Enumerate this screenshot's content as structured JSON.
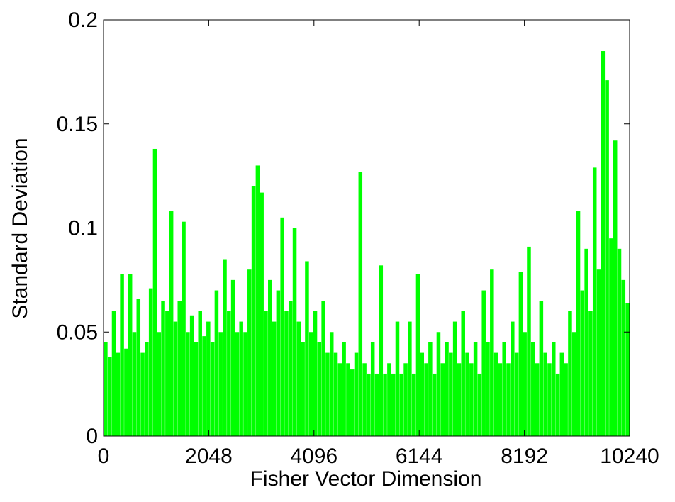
{
  "chart_data": {
    "type": "bar",
    "xlabel": "Fisher Vector Dimension",
    "ylabel": "Standard Deviation",
    "color": "#00ff00",
    "xlim": [
      0,
      10240
    ],
    "xticks": [
      0,
      2048,
      4096,
      6144,
      8192,
      10240
    ],
    "ylim": [
      0,
      0.2
    ],
    "yticks": [
      0,
      0.05,
      0.1,
      0.15,
      0.2
    ],
    "grid": false,
    "x": [
      40,
      120,
      200,
      280,
      360,
      440,
      520,
      600,
      680,
      760,
      840,
      920,
      1000,
      1080,
      1160,
      1240,
      1320,
      1400,
      1480,
      1560,
      1640,
      1720,
      1800,
      1880,
      1960,
      2040,
      2120,
      2200,
      2280,
      2360,
      2440,
      2520,
      2600,
      2680,
      2760,
      2840,
      2920,
      3000,
      3080,
      3160,
      3240,
      3320,
      3400,
      3480,
      3560,
      3640,
      3720,
      3800,
      3880,
      3960,
      4040,
      4120,
      4200,
      4280,
      4360,
      4440,
      4520,
      4600,
      4680,
      4760,
      4840,
      4920,
      5000,
      5080,
      5160,
      5240,
      5320,
      5400,
      5480,
      5560,
      5640,
      5720,
      5800,
      5880,
      5960,
      6040,
      6120,
      6200,
      6280,
      6360,
      6440,
      6520,
      6600,
      6680,
      6760,
      6840,
      6920,
      7000,
      7080,
      7160,
      7240,
      7320,
      7400,
      7480,
      7560,
      7640,
      7720,
      7800,
      7880,
      7960,
      8040,
      8120,
      8200,
      8280,
      8360,
      8440,
      8520,
      8600,
      8680,
      8760,
      8840,
      8920,
      9000,
      9080,
      9160,
      9240,
      9320,
      9400,
      9480,
      9560,
      9640,
      9720,
      9800,
      9880,
      9960,
      10040,
      10120,
      10200
    ],
    "values": [
      0.045,
      0.038,
      0.06,
      0.04,
      0.078,
      0.042,
      0.078,
      0.05,
      0.066,
      0.04,
      0.045,
      0.071,
      0.138,
      0.05,
      0.065,
      0.06,
      0.108,
      0.055,
      0.065,
      0.103,
      0.05,
      0.058,
      0.045,
      0.06,
      0.048,
      0.055,
      0.045,
      0.07,
      0.05,
      0.085,
      0.06,
      0.075,
      0.05,
      0.055,
      0.05,
      0.08,
      0.12,
      0.13,
      0.117,
      0.06,
      0.075,
      0.055,
      0.07,
      0.105,
      0.06,
      0.065,
      0.1,
      0.055,
      0.045,
      0.084,
      0.05,
      0.06,
      0.045,
      0.065,
      0.04,
      0.05,
      0.04,
      0.035,
      0.045,
      0.035,
      0.032,
      0.04,
      0.127,
      0.035,
      0.03,
      0.045,
      0.03,
      0.082,
      0.03,
      0.035,
      0.03,
      0.055,
      0.03,
      0.035,
      0.055,
      0.03,
      0.078,
      0.04,
      0.035,
      0.045,
      0.03,
      0.05,
      0.035,
      0.045,
      0.04,
      0.055,
      0.035,
      0.06,
      0.04,
      0.035,
      0.045,
      0.03,
      0.07,
      0.045,
      0.08,
      0.04,
      0.035,
      0.045,
      0.035,
      0.055,
      0.04,
      0.079,
      0.05,
      0.091,
      0.045,
      0.035,
      0.065,
      0.04,
      0.035,
      0.045,
      0.03,
      0.04,
      0.035,
      0.06,
      0.05,
      0.108,
      0.07,
      0.09,
      0.06,
      0.129,
      0.08,
      0.185,
      0.171,
      0.095,
      0.142,
      0.09,
      0.075,
      0.064
    ]
  }
}
